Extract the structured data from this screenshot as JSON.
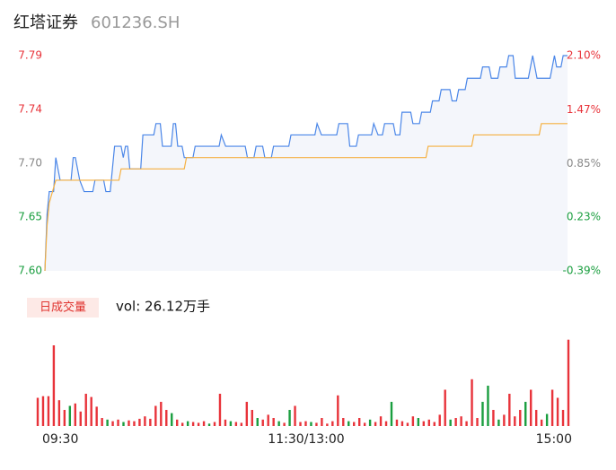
{
  "chart_data": [
    {
      "type": "line",
      "title": "红塔证券",
      "subtitle": "601236.SH",
      "xlim": [
        0,
        240
      ],
      "xticks": [
        {
          "value": 0,
          "label": "09:30"
        },
        {
          "value": 120,
          "label": "11:30/13:00"
        },
        {
          "value": 240,
          "label": "15:00"
        }
      ],
      "ylim": [
        7.6,
        7.79
      ],
      "yticks": [
        {
          "value": 7.6,
          "label": "7.60"
        },
        {
          "value": 7.6475,
          "label": "7.65"
        },
        {
          "value": 7.695,
          "label": "7.70"
        },
        {
          "value": 7.7425,
          "label": "7.74"
        },
        {
          "value": 7.79,
          "label": "7.79"
        }
      ],
      "ytick_colors": [
        "#1a9e3f",
        "#1a9e3f",
        "#888888",
        "#e8333a",
        "#e8333a"
      ],
      "y2lim": [
        -0.39,
        2.1
      ],
      "y2ticks": [
        {
          "value": -0.39,
          "label": "-0.39%"
        },
        {
          "value": 0.23,
          "label": "0.23%"
        },
        {
          "value": 0.85,
          "label": "0.85%"
        },
        {
          "value": 1.47,
          "label": "1.47%"
        },
        {
          "value": 2.1,
          "label": "2.10%"
        }
      ],
      "area_color": "#f4f6fb",
      "series": [
        {
          "color": "#4a86e8",
          "x": [
            0,
            1,
            2,
            4,
            5,
            6,
            7,
            12,
            13,
            14,
            16,
            18,
            22,
            23,
            27,
            28,
            30,
            31,
            32,
            35,
            36,
            37,
            38,
            39,
            44,
            45,
            50,
            51,
            53,
            54,
            58,
            59,
            60,
            61,
            63,
            64,
            68,
            69,
            80,
            81,
            83,
            92,
            93,
            96,
            97,
            100,
            101,
            104,
            105,
            112,
            113,
            124,
            125,
            127,
            134,
            135,
            139,
            140,
            143,
            144,
            150,
            151,
            153,
            155,
            156,
            160,
            161,
            163,
            164,
            168,
            169,
            172,
            173,
            177,
            178,
            181,
            182,
            186,
            187,
            189,
            190,
            193,
            194,
            200,
            201,
            204,
            205,
            208,
            209,
            212,
            213,
            215,
            216,
            222,
            223,
            224,
            225,
            226,
            232,
            233,
            234,
            235,
            237,
            238,
            240
          ],
          "values": [
            7.6,
            7.65,
            7.67,
            7.67,
            7.7,
            7.69,
            7.68,
            7.68,
            7.7,
            7.7,
            7.68,
            7.67,
            7.67,
            7.68,
            7.68,
            7.67,
            7.67,
            7.69,
            7.71,
            7.71,
            7.7,
            7.71,
            7.71,
            7.69,
            7.69,
            7.72,
            7.72,
            7.73,
            7.73,
            7.71,
            7.71,
            7.73,
            7.73,
            7.71,
            7.71,
            7.7,
            7.7,
            7.71,
            7.71,
            7.72,
            7.71,
            7.71,
            7.7,
            7.7,
            7.71,
            7.71,
            7.7,
            7.7,
            7.71,
            7.71,
            7.72,
            7.72,
            7.73,
            7.72,
            7.72,
            7.73,
            7.73,
            7.71,
            7.71,
            7.72,
            7.72,
            7.73,
            7.72,
            7.72,
            7.73,
            7.73,
            7.72,
            7.72,
            7.74,
            7.74,
            7.73,
            7.73,
            7.74,
            7.74,
            7.75,
            7.75,
            7.76,
            7.76,
            7.75,
            7.75,
            7.76,
            7.76,
            7.77,
            7.77,
            7.78,
            7.78,
            7.77,
            7.77,
            7.78,
            7.78,
            7.79,
            7.79,
            7.77,
            7.77,
            7.78,
            7.79,
            7.78,
            7.77,
            7.77,
            7.78,
            7.79,
            7.78,
            7.78,
            7.79,
            7.79
          ]
        },
        {
          "color": "#f5b041",
          "x": [
            0,
            1,
            2,
            5,
            34,
            35,
            64,
            65,
            175,
            176,
            196,
            197,
            227,
            228,
            240
          ],
          "values": [
            7.6,
            7.64,
            7.66,
            7.68,
            7.68,
            7.69,
            7.69,
            7.7,
            7.7,
            7.71,
            7.71,
            7.72,
            7.72,
            7.73,
            7.73
          ]
        }
      ]
    },
    {
      "type": "bar",
      "label": "日成交量",
      "annotation": "vol: 26.12万手",
      "ylim": [
        0,
        120
      ],
      "up_color": "#e8333a",
      "down_color": "#1a9e3f",
      "values": [
        35,
        37,
        37,
        100,
        32,
        20,
        25,
        28,
        18,
        40,
        36,
        24,
        10,
        8,
        6,
        8,
        5,
        7,
        6,
        9,
        12,
        9,
        25,
        30,
        20,
        16,
        8,
        4,
        6,
        5,
        4,
        6,
        3,
        5,
        40,
        8,
        6,
        5,
        4,
        30,
        20,
        10,
        8,
        14,
        10,
        6,
        4,
        20,
        25,
        5,
        6,
        5,
        4,
        10,
        3,
        6,
        38,
        10,
        6,
        5,
        10,
        4,
        8,
        5,
        12,
        6,
        30,
        8,
        6,
        4,
        12,
        10,
        6,
        8,
        5,
        14,
        45,
        8,
        10,
        12,
        6,
        58,
        10,
        30,
        50,
        20,
        8,
        14,
        40,
        12,
        20,
        30,
        45,
        20,
        8,
        15,
        45,
        35,
        20,
        107
      ],
      "up": [
        1,
        1,
        1,
        1,
        1,
        1,
        0,
        1,
        1,
        1,
        1,
        1,
        1,
        0,
        1,
        1,
        0,
        1,
        1,
        1,
        1,
        1,
        1,
        1,
        1,
        0,
        1,
        1,
        0,
        1,
        1,
        1,
        0,
        1,
        1,
        1,
        0,
        1,
        1,
        1,
        1,
        0,
        1,
        1,
        1,
        0,
        1,
        0,
        1,
        1,
        1,
        0,
        1,
        1,
        1,
        1,
        1,
        1,
        0,
        1,
        1,
        1,
        0,
        1,
        1,
        1,
        0,
        1,
        1,
        1,
        1,
        0,
        1,
        1,
        1,
        1,
        1,
        0,
        1,
        1,
        1,
        1,
        1,
        0,
        0,
        1,
        0,
        1,
        1,
        1,
        1,
        0,
        1,
        1,
        1,
        0,
        1,
        1,
        1,
        1
      ]
    }
  ]
}
